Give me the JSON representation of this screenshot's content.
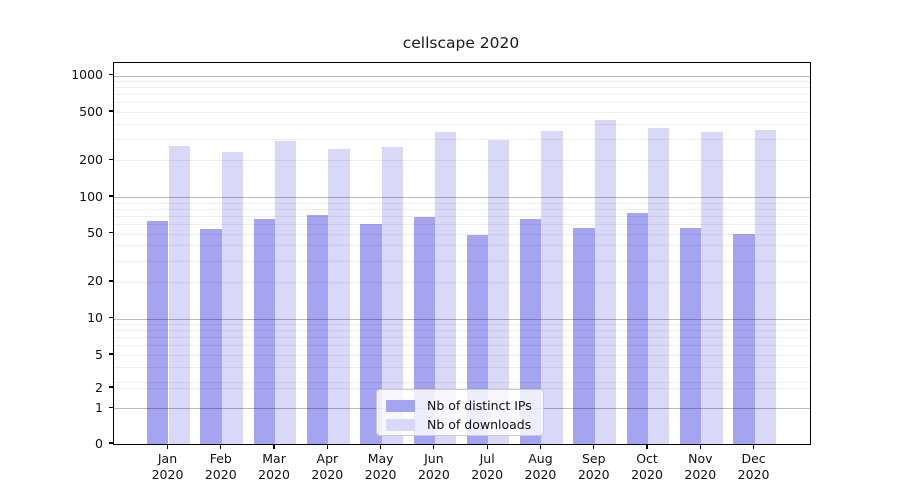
{
  "title": "cellscape 2020",
  "chart_data": {
    "type": "bar",
    "title": "cellscape 2020",
    "categories": [
      "Jan 2020",
      "Feb 2020",
      "Mar 2020",
      "Apr 2020",
      "May 2020",
      "Jun 2020",
      "Jul 2020",
      "Aug 2020",
      "Sep 2020",
      "Oct 2020",
      "Nov 2020",
      "Dec 2020"
    ],
    "series": [
      {
        "name": "Nb of distinct IPs",
        "color": "#a5a4f1",
        "values": [
          63,
          55,
          66,
          71,
          60,
          69,
          49,
          66,
          56,
          74,
          56,
          50
        ]
      },
      {
        "name": "Nb of downloads",
        "color": "#d9d8f8",
        "values": [
          262,
          235,
          290,
          248,
          258,
          345,
          292,
          352,
          432,
          369,
          340,
          355
        ]
      }
    ],
    "yscale": "symlog",
    "y_ticks": [
      1000,
      500,
      200,
      100,
      50,
      20,
      10,
      5,
      2,
      1,
      0
    ],
    "ylim": [
      0,
      1300
    ],
    "xlabel": "",
    "ylabel": "",
    "grid": "horizontal",
    "legend_position": "lower-center-inside"
  },
  "colors": {
    "grid_minor": "#ededed",
    "grid_major": "#bababa",
    "axis": "#000000",
    "background": "#ffffff"
  }
}
